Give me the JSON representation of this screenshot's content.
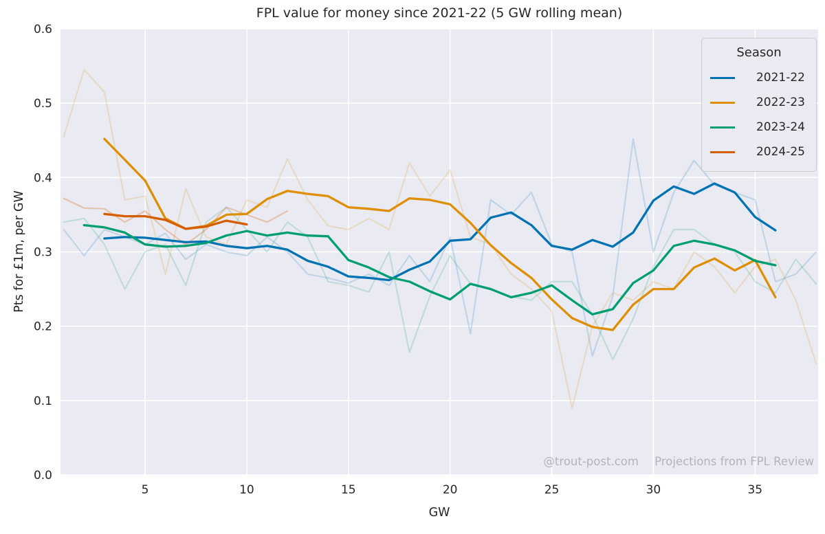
{
  "title": "FPL value for money since 2021-22 (5 GW rolling mean)",
  "axes": {
    "xlabel": "GW",
    "ylabel": "Pts for £1m, per GW"
  },
  "legend": {
    "title": "Season",
    "entries": [
      {
        "label": "2021-22",
        "color": "#0173B2"
      },
      {
        "label": "2022-23",
        "color": "#DE8F05"
      },
      {
        "label": "2023-24",
        "color": "#029E73"
      },
      {
        "label": "2024-25",
        "color": "#D55E00"
      }
    ]
  },
  "watermark": {
    "handle": "@trout-post.com",
    "credit": "Projections from FPL Review"
  },
  "chart_data": {
    "type": "line",
    "title": "FPL value for money since 2021-22 (5 GW rolling mean)",
    "xlabel": "GW",
    "ylabel": "Pts for £1m, per GW",
    "xlim": [
      0.84,
      38.1
    ],
    "ylim": [
      0.0,
      0.6
    ],
    "x_ticks": [
      5,
      10,
      15,
      20,
      25,
      30,
      35
    ],
    "y_ticks": [
      0.0,
      0.1,
      0.2,
      0.3,
      0.4,
      0.5,
      0.6
    ],
    "grid": true,
    "legend_position": "upper right",
    "plot_background": "#EAEAF2",
    "grid_color": "#FFFFFF",
    "series": [
      {
        "name": "2021-22 raw",
        "color": "#0173B2",
        "alpha": 0.18,
        "width": 2.2,
        "x_start": 1,
        "y": [
          0.33,
          0.295,
          0.33,
          0.32,
          0.31,
          0.325,
          0.29,
          0.31,
          0.3,
          0.295,
          0.32,
          0.3,
          0.27,
          0.265,
          0.258,
          0.27,
          0.255,
          0.295,
          0.26,
          0.32,
          0.19,
          0.37,
          0.35,
          0.38,
          0.31,
          0.3,
          0.16,
          0.24,
          0.452,
          0.3,
          0.38,
          0.423,
          0.39,
          0.38,
          0.37,
          0.26,
          0.27,
          0.3
        ]
      },
      {
        "name": "2022-23 raw",
        "color": "#DE8F05",
        "alpha": 0.18,
        "width": 2.2,
        "x_start": 1,
        "y": [
          0.455,
          0.545,
          0.515,
          0.37,
          0.375,
          0.27,
          0.385,
          0.32,
          0.31,
          0.37,
          0.36,
          0.425,
          0.37,
          0.335,
          0.33,
          0.345,
          0.33,
          0.42,
          0.375,
          0.41,
          0.32,
          0.31,
          0.27,
          0.25,
          0.22,
          0.09,
          0.2,
          0.245,
          0.235,
          0.26,
          0.25,
          0.3,
          0.28,
          0.245,
          0.28,
          0.29,
          0.235,
          0.15
        ]
      },
      {
        "name": "2023-24 raw",
        "color": "#029E73",
        "alpha": 0.18,
        "width": 2.2,
        "x_start": 1,
        "y": [
          0.34,
          0.345,
          0.31,
          0.25,
          0.3,
          0.31,
          0.255,
          0.34,
          0.36,
          0.33,
          0.3,
          0.34,
          0.32,
          0.26,
          0.255,
          0.246,
          0.3,
          0.165,
          0.24,
          0.295,
          0.257,
          0.25,
          0.24,
          0.235,
          0.26,
          0.26,
          0.215,
          0.155,
          0.21,
          0.28,
          0.33,
          0.33,
          0.31,
          0.3,
          0.26,
          0.245,
          0.29,
          0.257
        ]
      },
      {
        "name": "2024-25 raw",
        "color": "#D55E00",
        "alpha": 0.28,
        "width": 2.2,
        "x_start": 1,
        "y": [
          0.372,
          0.359,
          0.358,
          0.34,
          0.355,
          0.33,
          0.31,
          0.33,
          0.36,
          0.35,
          0.34,
          0.355
        ]
      },
      {
        "name": "2021-22 rolling mean",
        "color": "#0173B2",
        "alpha": 1,
        "width": 3.3,
        "x_start": 3,
        "y": [
          0.318,
          0.32,
          0.319,
          0.316,
          0.313,
          0.314,
          0.308,
          0.305,
          0.308,
          0.303,
          0.288,
          0.28,
          0.267,
          0.265,
          0.262,
          0.276,
          0.287,
          0.315,
          0.317,
          0.346,
          0.353,
          0.336,
          0.308,
          0.303,
          0.316,
          0.307,
          0.326,
          0.369,
          0.388,
          0.378,
          0.392,
          0.38,
          0.347,
          0.329
        ]
      },
      {
        "name": "2022-23 rolling mean",
        "color": "#DE8F05",
        "alpha": 1,
        "width": 3.3,
        "x_start": 3,
        "y": [
          0.452,
          0.424,
          0.396,
          0.345,
          0.331,
          0.335,
          0.35,
          0.351,
          0.371,
          0.382,
          0.378,
          0.375,
          0.36,
          0.358,
          0.355,
          0.372,
          0.37,
          0.364,
          0.339,
          0.309,
          0.285,
          0.265,
          0.236,
          0.211,
          0.199,
          0.195,
          0.229,
          0.25,
          0.25,
          0.279,
          0.291,
          0.275,
          0.289,
          0.239
        ]
      },
      {
        "name": "2023-24 rolling mean",
        "color": "#029E73",
        "alpha": 1,
        "width": 3.3,
        "x_start": 2,
        "y": [
          0.336,
          0.333,
          0.326,
          0.31,
          0.307,
          0.308,
          0.312,
          0.322,
          0.328,
          0.322,
          0.326,
          0.322,
          0.321,
          0.289,
          0.279,
          0.266,
          0.26,
          0.247,
          0.236,
          0.257,
          0.25,
          0.239,
          0.245,
          0.255,
          0.235,
          0.216,
          0.223,
          0.258,
          0.275,
          0.308,
          0.315,
          0.31,
          0.302,
          0.288,
          0.282
        ]
      },
      {
        "name": "2024-25 rolling mean",
        "color": "#D55E00",
        "alpha": 1,
        "width": 3.3,
        "x_start": 3,
        "y": [
          0.351,
          0.348,
          0.348,
          0.343,
          0.331,
          0.334,
          0.342,
          0.337
        ]
      }
    ]
  }
}
